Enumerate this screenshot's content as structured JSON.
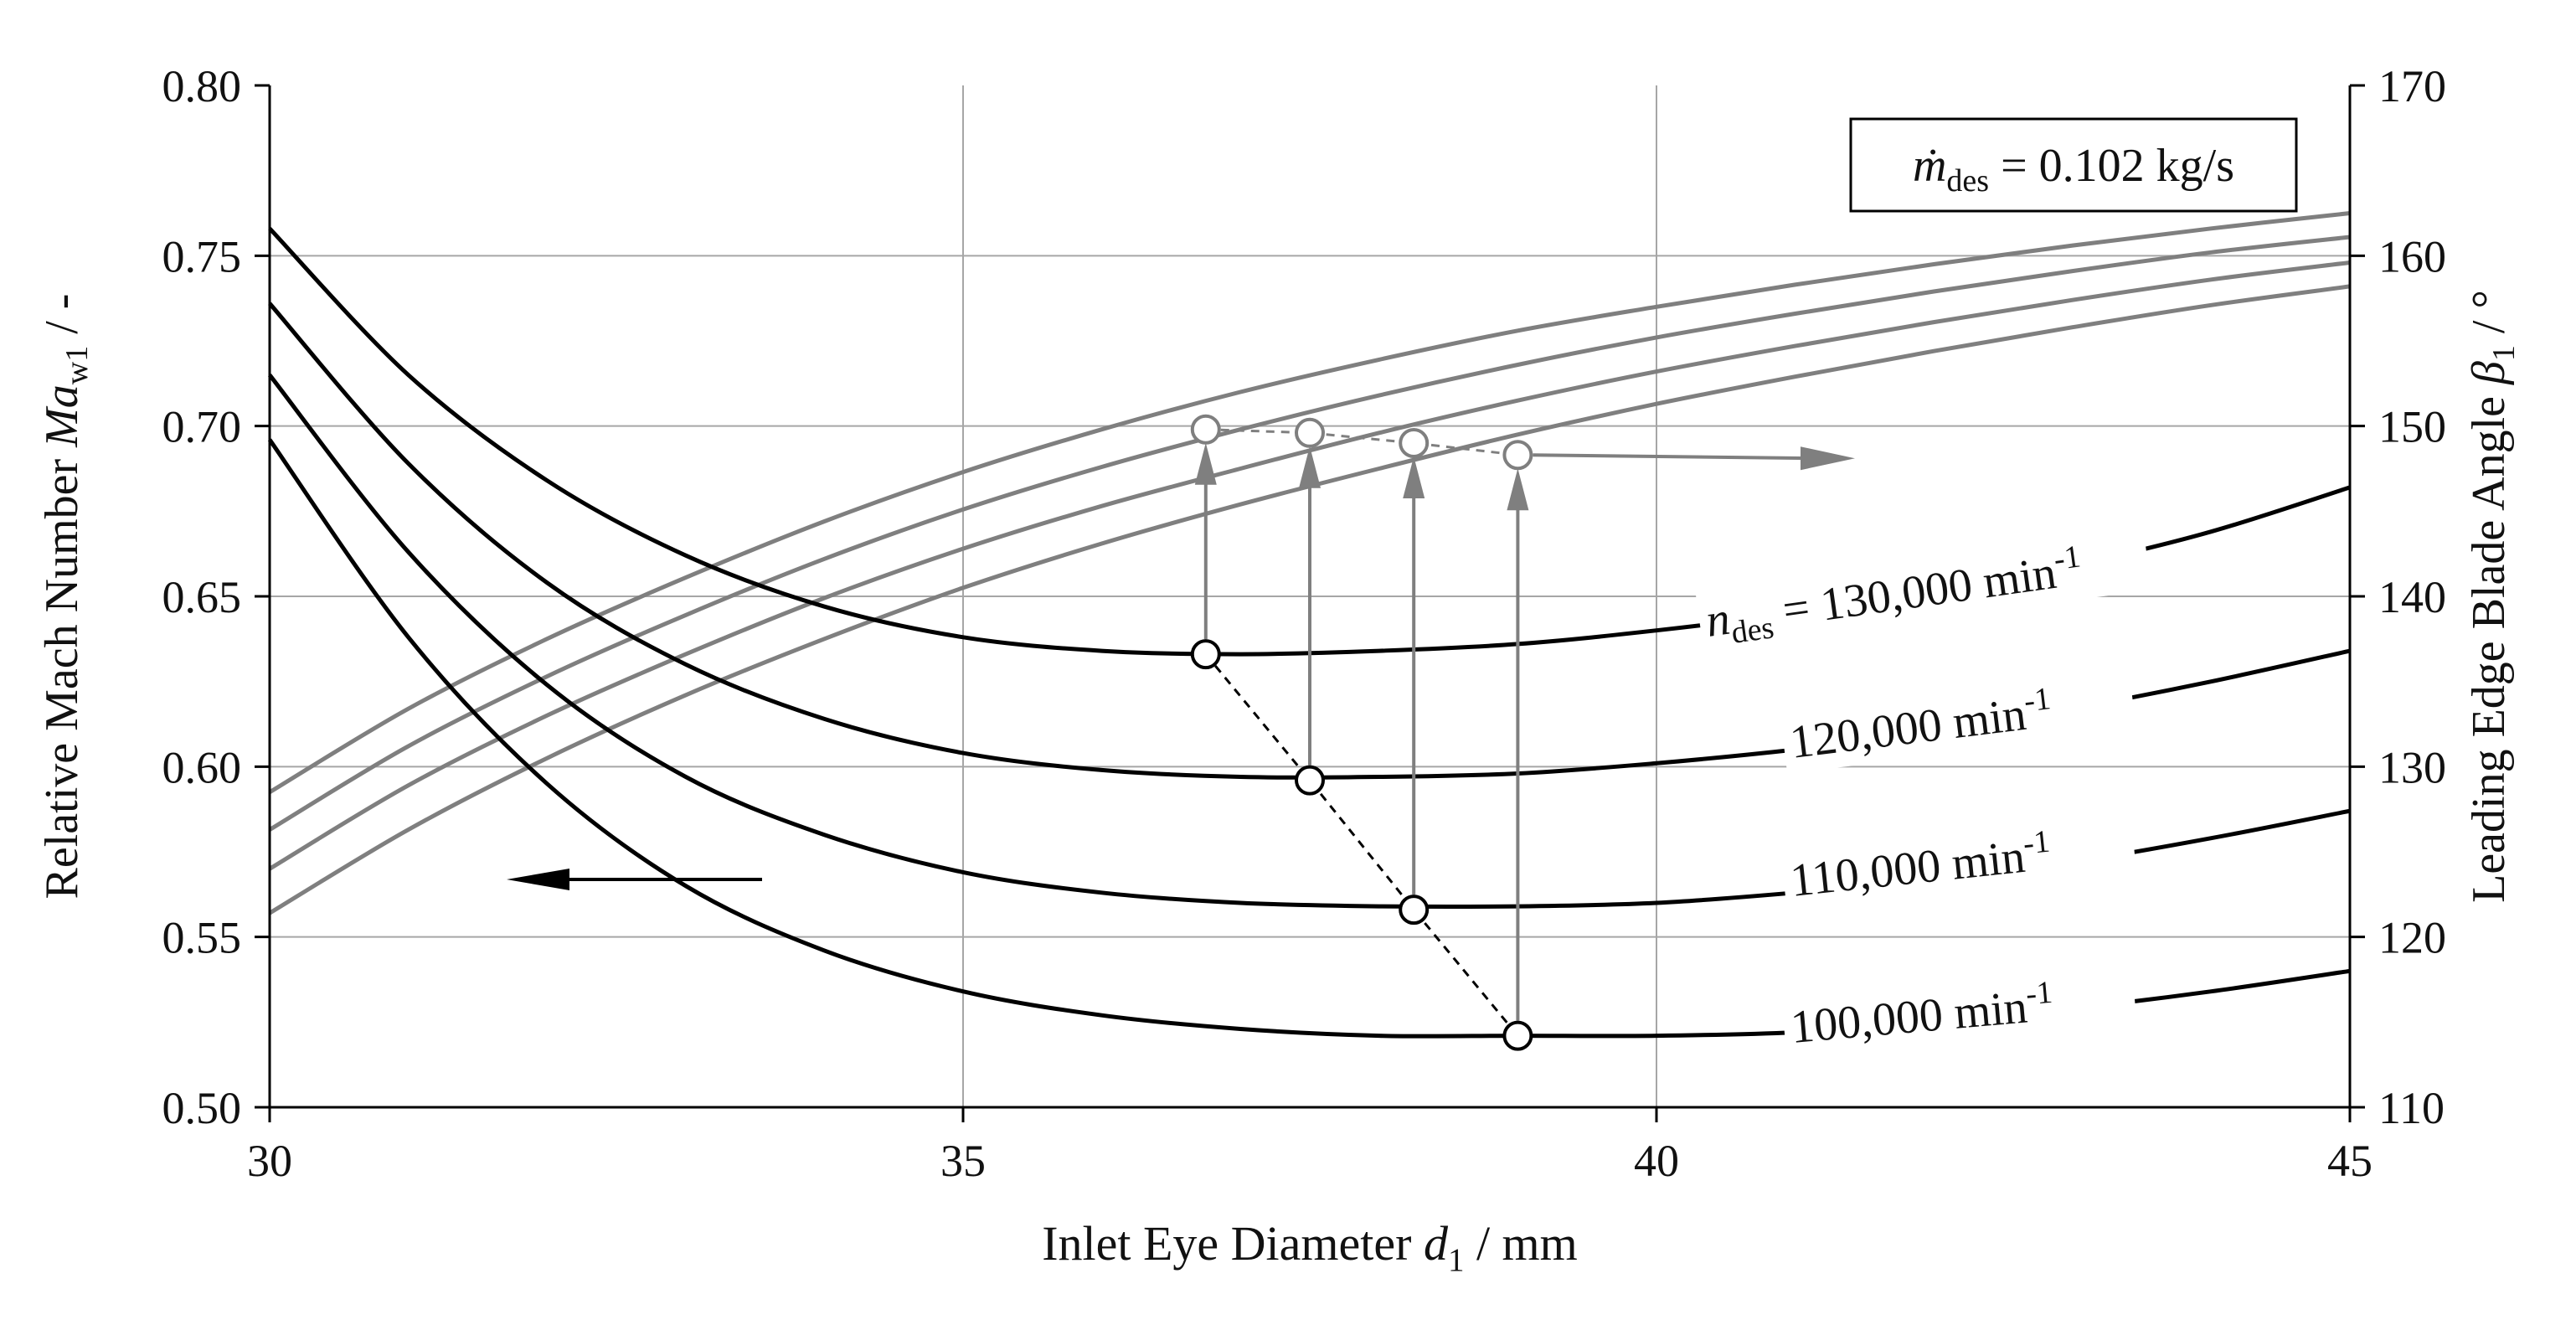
{
  "chart_data": {
    "type": "line",
    "xlabel": {
      "pre": "Inlet Eye Diameter ",
      "sym": "d",
      "sub": "1",
      "post": " / mm"
    },
    "ylabel_left": {
      "pre": "Relative Mach Number ",
      "sym": "Ma",
      "sub": "w1",
      "post": " / -"
    },
    "ylabel_right": {
      "pre": "Leading Edge Blade Angle  ",
      "sym": "β",
      "sub": "1",
      "post": " / °"
    },
    "xlim": [
      30,
      45
    ],
    "ylim_left": [
      0.5,
      0.8
    ],
    "ylim_right": [
      110,
      170
    ],
    "xticks": [
      "30",
      "35",
      "40",
      "45"
    ],
    "yticks_left": [
      "0.50",
      "0.55",
      "0.60",
      "0.65",
      "0.70",
      "0.75",
      "0.80"
    ],
    "yticks_right": [
      "110",
      "120",
      "130",
      "140",
      "150",
      "160",
      "170"
    ],
    "grid": true,
    "annotation_box": {
      "sym": "ṁ",
      "sub": "des",
      "post": " = 0.102 kg/s"
    },
    "colors": {
      "mach": "#000000",
      "angle": "#7f7f7f",
      "grid": "#a6a6a6"
    },
    "x": [
      30,
      31,
      32,
      33,
      34,
      35,
      36,
      37,
      38,
      39,
      40,
      41,
      42,
      43,
      44,
      45
    ],
    "mach_series": [
      {
        "name": "n_des = 130,000 min-1",
        "axis": "left",
        "values": [
          0.758,
          0.715,
          0.684,
          0.662,
          0.647,
          0.638,
          0.634,
          0.633,
          0.634,
          0.636,
          0.64,
          0.645,
          0.651,
          0.659,
          0.669,
          0.682
        ]
      },
      {
        "name": "120,000 min-1",
        "axis": "left",
        "values": [
          0.736,
          0.689,
          0.654,
          0.63,
          0.614,
          0.604,
          0.599,
          0.597,
          0.597,
          0.598,
          0.601,
          0.605,
          0.61,
          0.617,
          0.625,
          0.634
        ]
      },
      {
        "name": "110,000 min-1",
        "axis": "left",
        "values": [
          0.715,
          0.663,
          0.624,
          0.597,
          0.58,
          0.569,
          0.563,
          0.56,
          0.559,
          0.559,
          0.56,
          0.563,
          0.567,
          0.572,
          0.579,
          0.587
        ]
      },
      {
        "name": "100,000 min-1",
        "axis": "left",
        "values": [
          0.696,
          0.638,
          0.595,
          0.565,
          0.546,
          0.534,
          0.527,
          0.523,
          0.521,
          0.521,
          0.521,
          0.522,
          0.525,
          0.529,
          0.534,
          0.54
        ]
      }
    ],
    "angle_series": [
      {
        "axis": "right",
        "values": [
          128.5,
          133.4,
          137.5,
          141.1,
          144.4,
          147.3,
          149.8,
          152.0,
          153.9,
          155.6,
          157.0,
          158.3,
          159.5,
          160.6,
          161.6,
          162.5
        ]
      },
      {
        "axis": "right",
        "values": [
          126.3,
          131.2,
          135.3,
          138.9,
          142.2,
          145.1,
          147.6,
          149.8,
          151.8,
          153.6,
          155.2,
          156.6,
          157.9,
          159.1,
          160.2,
          161.1
        ]
      },
      {
        "axis": "right",
        "values": [
          124.0,
          128.9,
          133.0,
          136.6,
          139.9,
          142.8,
          145.3,
          147.5,
          149.6,
          151.5,
          153.2,
          154.7,
          156.1,
          157.4,
          158.6,
          159.6
        ]
      },
      {
        "axis": "right",
        "values": [
          121.4,
          126.3,
          130.5,
          134.2,
          137.5,
          140.5,
          143.1,
          145.4,
          147.5,
          149.5,
          151.3,
          152.9,
          154.4,
          155.8,
          157.1,
          158.2
        ]
      }
    ],
    "design_points": [
      {
        "x": 36.75,
        "mach": 0.633,
        "angle": 149.8
      },
      {
        "x": 37.5,
        "mach": 0.596,
        "angle": 149.6
      },
      {
        "x": 38.25,
        "mach": 0.558,
        "angle": 149.0
      },
      {
        "x": 39.0,
        "mach": 0.521,
        "angle": 148.3
      }
    ],
    "series_labels": [
      {
        "pre": "",
        "sym": "n",
        "sub": "des",
        "post": " = 130,000 min",
        "sup": "-1"
      },
      {
        "pre": "120,000 min",
        "sym": "",
        "sub": "",
        "post": "",
        "sup": "-1"
      },
      {
        "pre": "110,000 min",
        "sym": "",
        "sub": "",
        "post": "",
        "sup": "-1"
      },
      {
        "pre": "100,000 min",
        "sym": "",
        "sub": "",
        "post": "",
        "sup": "-1"
      }
    ]
  }
}
